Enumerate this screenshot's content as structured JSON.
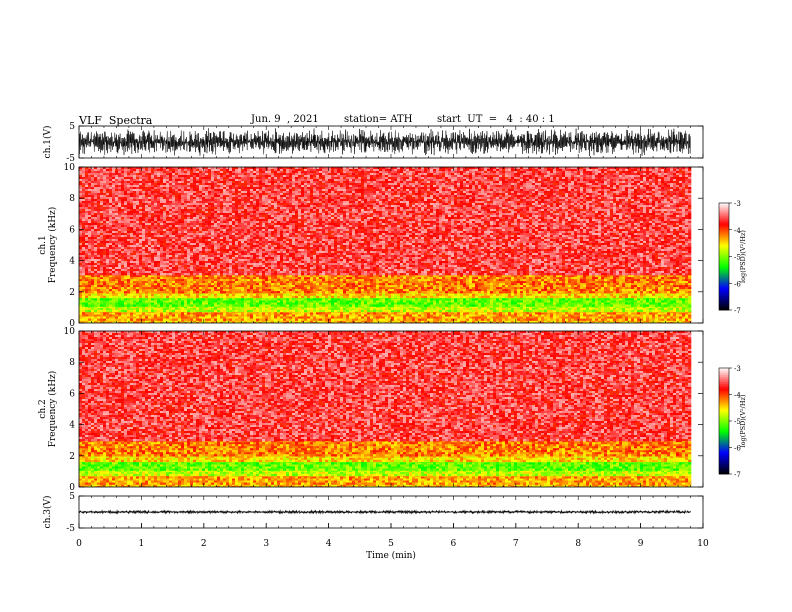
{
  "header": {
    "title": "VLF  Spectra",
    "date": "Jun. 9  , 2021",
    "station": "station= ATH",
    "start": "start  UT  =   4  : 40 : 1"
  },
  "chart_data": [
    {
      "type": "line",
      "name": "ch1-waveform",
      "ylabel": "ch.1(V)",
      "ylim": [
        -5,
        5
      ],
      "yticks": [
        5,
        -5
      ],
      "xlim": [
        0,
        10
      ],
      "x_end": 9.8,
      "envelope_amplitude": [
        -4.5,
        4.5
      ],
      "description_text": ""
    },
    {
      "type": "heatmap",
      "name": "ch1-spectrogram",
      "ylabel": "ch.1\nFrequency  (kHz)",
      "ylim": [
        0,
        10
      ],
      "yticks": [
        0,
        2,
        4,
        6,
        8,
        10
      ],
      "xlim": [
        0,
        10
      ],
      "x_end": 9.8,
      "bands": [
        {
          "from": 0.0,
          "to": 0.2,
          "level": -4.4
        },
        {
          "from": 0.2,
          "to": 0.8,
          "level": -4.3
        },
        {
          "from": 0.8,
          "to": 1.1,
          "level": -4.8
        },
        {
          "from": 1.1,
          "to": 1.7,
          "level": -5.1
        },
        {
          "from": 1.7,
          "to": 2.0,
          "level": -4.5
        },
        {
          "from": 2.0,
          "to": 3.2,
          "level": -4.2
        },
        {
          "from": 3.2,
          "to": 10.0,
          "level": -3.6
        }
      ]
    },
    {
      "type": "heatmap",
      "name": "ch2-spectrogram",
      "ylabel": "ch.2\nFrequency  (kHz)",
      "ylim": [
        0,
        10
      ],
      "yticks": [
        0,
        2,
        4,
        6,
        8,
        10
      ],
      "xlim": [
        0,
        10
      ],
      "x_end": 9.8,
      "bands": [
        {
          "from": 0.0,
          "to": 0.2,
          "level": -4.4
        },
        {
          "from": 0.2,
          "to": 0.8,
          "level": -4.3
        },
        {
          "from": 0.8,
          "to": 1.1,
          "level": -4.8
        },
        {
          "from": 1.1,
          "to": 1.7,
          "level": -5.1
        },
        {
          "from": 1.7,
          "to": 2.0,
          "level": -4.5
        },
        {
          "from": 2.0,
          "to": 3.0,
          "level": -4.2
        },
        {
          "from": 3.0,
          "to": 10.0,
          "level": -3.6
        }
      ]
    },
    {
      "type": "line",
      "name": "ch3-waveform",
      "ylabel": "ch.3(V)",
      "ylim": [
        -5,
        5
      ],
      "yticks": [
        5,
        -5
      ],
      "xlim": [
        0,
        10
      ],
      "x_end": 9.8,
      "constant_value": 0,
      "envelope_amplitude": [
        -0.4,
        0.4
      ]
    }
  ],
  "colorbar": {
    "label": "log(PSD)(V²/Hz)",
    "range": [
      -7,
      -3
    ],
    "ticks": [
      -3,
      -4,
      -5,
      -6,
      -7
    ],
    "stops": [
      "#ffffff",
      "#ff0000",
      "#ffff00",
      "#00ff00",
      "#0000ff",
      "#000000"
    ]
  },
  "xaxis": {
    "label": "Time  (min)",
    "range": [
      0,
      10
    ],
    "ticks": [
      0,
      1,
      2,
      3,
      4,
      5,
      6,
      7,
      8,
      9,
      10
    ]
  }
}
